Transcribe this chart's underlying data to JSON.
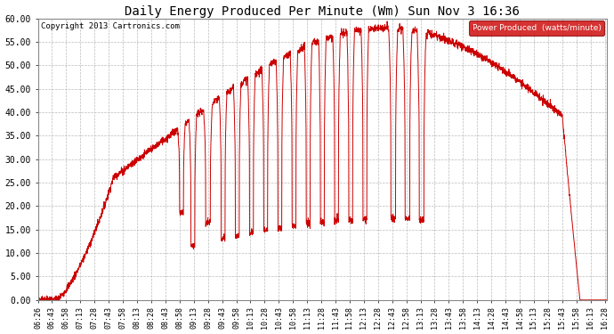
{
  "title": "Daily Energy Produced Per Minute (Wm) Sun Nov 3 16:36",
  "copyright": "Copyright 2013 Cartronics.com",
  "legend_label": "Power Produced  (watts/minute)",
  "legend_bg": "#cc0000",
  "line_color": "#cc0000",
  "bg_color": "#ffffff",
  "grid_color": "#bbbbbb",
  "ylim": [
    0,
    60
  ],
  "yticks": [
    0,
    5,
    10,
    15,
    20,
    25,
    30,
    35,
    40,
    45,
    50,
    55,
    60
  ],
  "ytick_labels": [
    "0.00",
    "5.00",
    "10.00",
    "15.00",
    "20.00",
    "25.00",
    "30.00",
    "35.00",
    "40.00",
    "45.00",
    "50.00",
    "55.00",
    "60.00"
  ],
  "xtick_labels": [
    "06:26",
    "06:43",
    "06:58",
    "07:13",
    "07:28",
    "07:43",
    "07:58",
    "08:13",
    "08:28",
    "08:43",
    "08:58",
    "09:13",
    "09:28",
    "09:43",
    "09:58",
    "10:13",
    "10:28",
    "10:43",
    "10:58",
    "11:13",
    "11:28",
    "11:43",
    "11:58",
    "12:13",
    "12:28",
    "12:43",
    "12:58",
    "13:13",
    "13:28",
    "13:43",
    "13:58",
    "14:13",
    "14:28",
    "14:43",
    "14:58",
    "15:13",
    "15:28",
    "15:43",
    "15:58",
    "16:13",
    "16:28"
  ],
  "figsize": [
    6.9,
    3.75
  ],
  "dpi": 100
}
